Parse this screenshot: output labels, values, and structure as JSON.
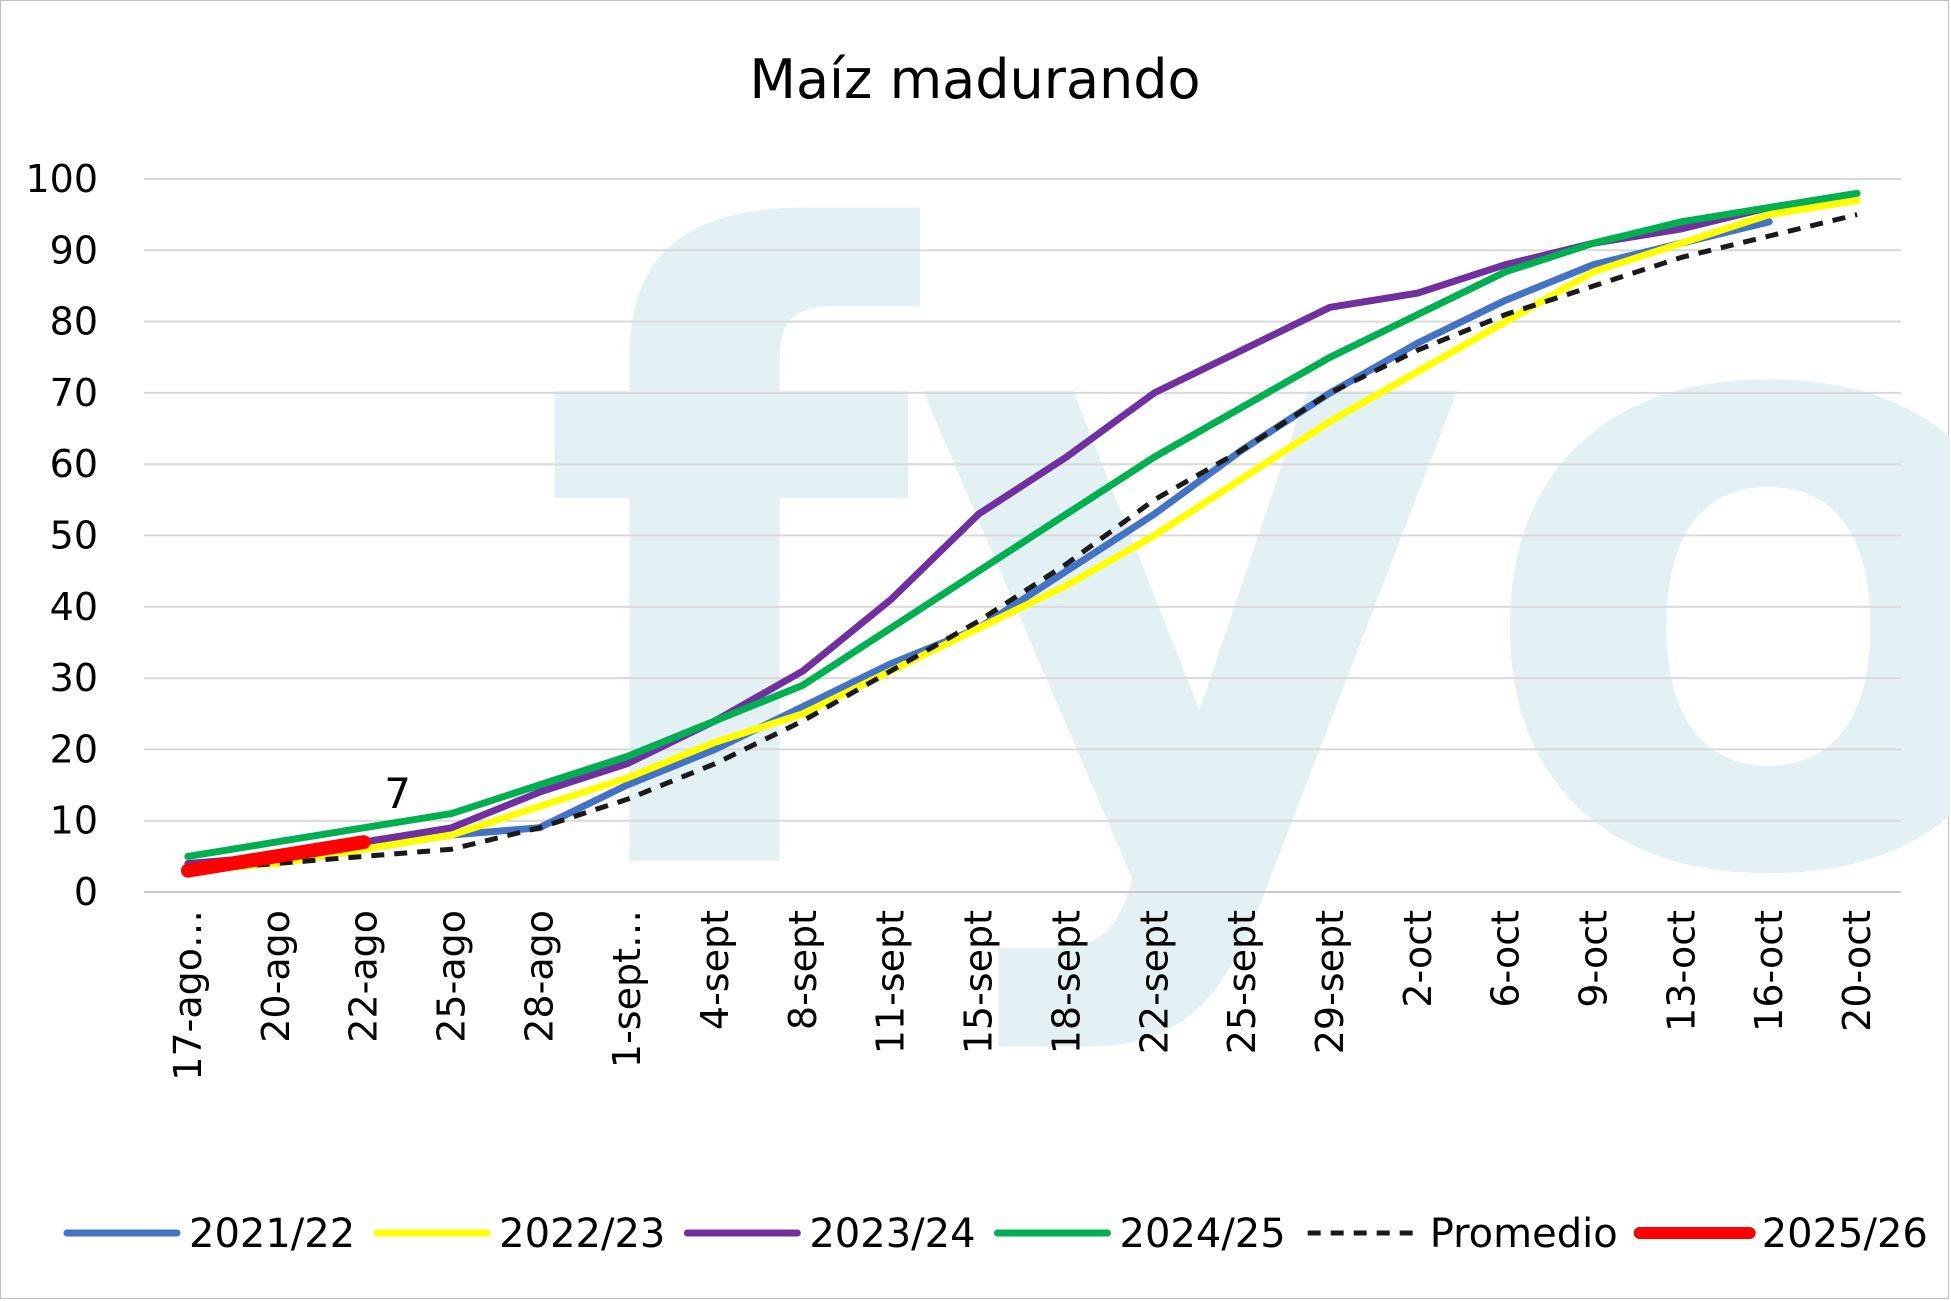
{
  "chart_data": {
    "type": "line",
    "title": "Maíz madurando",
    "xlabel": "",
    "ylabel": "",
    "ylim": [
      0,
      100
    ],
    "yticks": [
      0,
      10,
      20,
      30,
      40,
      50,
      60,
      70,
      80,
      90,
      100
    ],
    "grid": true,
    "legend_position": "bottom",
    "watermark": "fyo",
    "categories": [
      "17-ago…",
      "20-ago",
      "22-ago",
      "25-ago",
      "28-ago",
      "1-sept…",
      "4-sept",
      "8-sept",
      "11-sept",
      "15-sept",
      "18-sept",
      "22-sept",
      "25-sept",
      "29-sept",
      "2-oct",
      "6-oct",
      "9-oct",
      "13-oct",
      "16-oct",
      "20-oct"
    ],
    "series": [
      {
        "name": "2021/22",
        "color": "#4472c4",
        "dash": false,
        "x": [
          2,
          3,
          4,
          5,
          6,
          7,
          8,
          9,
          10,
          11,
          12,
          13,
          14,
          15,
          16,
          17,
          18,
          19
        ],
        "values": [
          4,
          6,
          8,
          9,
          15,
          20,
          26,
          32,
          37,
          45,
          53,
          62,
          70,
          77,
          83,
          88,
          91,
          94
        ]
      },
      {
        "name": "2022/23",
        "color": "#ffff00",
        "dash": false,
        "x": [
          1,
          2,
          3,
          4,
          5,
          6,
          7,
          8,
          9,
          10,
          11,
          12,
          13,
          14,
          15,
          16,
          17,
          18,
          19,
          20
        ],
        "values": [
          3,
          4,
          6,
          8,
          12,
          16,
          21,
          25,
          31,
          37,
          43,
          50,
          58,
          66,
          73,
          80,
          87,
          91,
          95,
          97
        ]
      },
      {
        "name": "2023/24",
        "color": "#7030a0",
        "dash": false,
        "x": [
          1,
          2,
          3,
          4,
          5,
          6,
          7,
          8,
          9,
          10,
          11,
          12,
          13,
          14,
          15,
          16,
          17,
          18,
          19
        ],
        "values": [
          4,
          5,
          7,
          9,
          14,
          18,
          24,
          31,
          41,
          53,
          61,
          70,
          76,
          82,
          84,
          88,
          91,
          93,
          96
        ]
      },
      {
        "name": "2024/25",
        "color": "#00b050",
        "dash": false,
        "x": [
          1,
          2,
          3,
          4,
          5,
          6,
          7,
          8,
          9,
          10,
          11,
          12,
          13,
          14,
          15,
          16,
          17,
          18,
          19,
          20
        ],
        "values": [
          5,
          7,
          9,
          11,
          15,
          19,
          24,
          29,
          37,
          45,
          53,
          61,
          68,
          75,
          81,
          87,
          91,
          94,
          96,
          98
        ]
      },
      {
        "name": "Promedio",
        "color": "#1a1a1a",
        "dash": true,
        "x": [
          1,
          2,
          3,
          4,
          5,
          6,
          7,
          8,
          9,
          10,
          11,
          12,
          13,
          14,
          15,
          16,
          17,
          18,
          19,
          20
        ],
        "values": [
          3,
          4,
          5,
          6,
          9,
          13,
          18,
          24,
          31,
          38,
          46,
          55,
          62,
          70,
          76,
          81,
          85,
          89,
          92,
          95
        ]
      },
      {
        "name": "2025/26",
        "color": "#ff0000",
        "dash": false,
        "x": [
          1,
          2,
          3
        ],
        "values": [
          3,
          5,
          7
        ]
      }
    ],
    "annotations": [
      {
        "series": "2025/26",
        "category": "22-ago",
        "value": 7,
        "text": "7"
      }
    ]
  }
}
